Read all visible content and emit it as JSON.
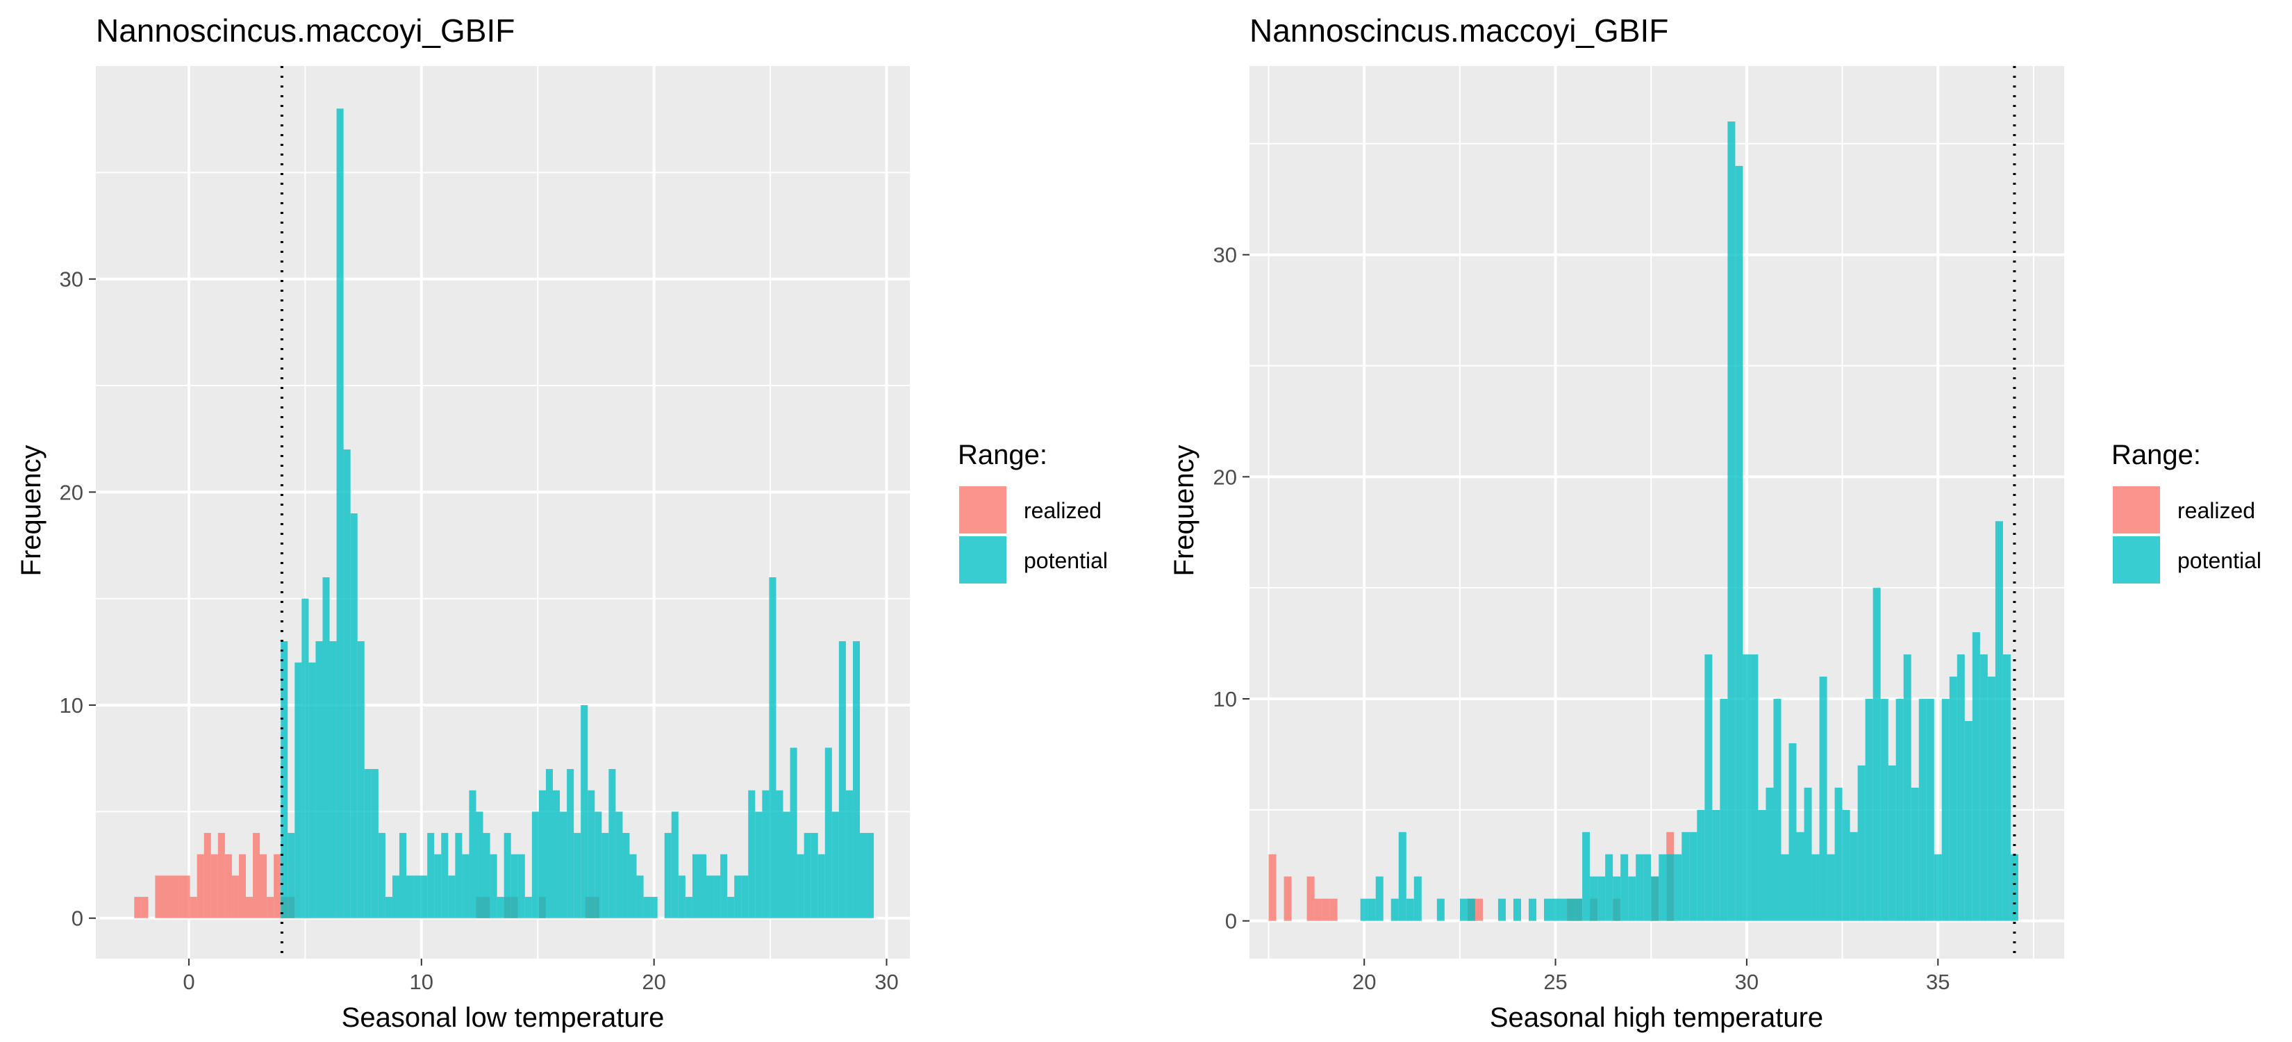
{
  "chart_data": [
    {
      "type": "bar",
      "subtype": "histogram",
      "title": "Nannoscincus.maccoyi_GBIF",
      "xlabel": "Seasonal low temperature",
      "ylabel": "Frequency",
      "xlim": [
        -4,
        31
      ],
      "ylim": [
        -1.9,
        40
      ],
      "xticks": [
        0,
        10,
        20,
        30
      ],
      "yticks": [
        0,
        10,
        20,
        30
      ],
      "binwidth": 0.3,
      "grid": true,
      "reference_line": {
        "x": 4,
        "style": "dotted"
      },
      "legend": {
        "title": "Range:",
        "position": "right",
        "entries": [
          "realized",
          "potential"
        ]
      },
      "colors": {
        "realized": "#F8766D",
        "potential": "#00BFC4"
      },
      "series": [
        {
          "name": "realized",
          "x": [
            -2.2,
            -1.9,
            -1.3,
            -1.0,
            -0.7,
            -0.4,
            -0.1,
            0.2,
            0.5,
            0.8,
            1.1,
            1.4,
            1.7,
            2.0,
            2.3,
            2.6,
            2.9,
            3.2,
            3.5,
            3.8,
            4.1,
            4.4,
            12.5,
            12.8,
            13.7,
            14.0,
            15.2,
            17.2,
            17.5
          ],
          "y": [
            1,
            1,
            2,
            2,
            2,
            2,
            2,
            1,
            3,
            4,
            3,
            4,
            3,
            2,
            3,
            1,
            4,
            3,
            1,
            3,
            1,
            1,
            1,
            1,
            1,
            1,
            1,
            1,
            1
          ]
        },
        {
          "name": "potential",
          "x": [
            4.1,
            4.4,
            4.7,
            5.0,
            5.3,
            5.6,
            5.9,
            6.2,
            6.5,
            6.8,
            7.1,
            7.4,
            7.7,
            8.0,
            8.3,
            8.6,
            8.9,
            9.2,
            9.5,
            9.8,
            10.1,
            10.4,
            10.7,
            11.0,
            11.3,
            11.6,
            11.9,
            12.2,
            12.5,
            12.8,
            13.1,
            13.4,
            13.7,
            14.0,
            14.3,
            14.6,
            14.9,
            15.2,
            15.5,
            15.8,
            16.1,
            16.4,
            16.7,
            17.0,
            17.3,
            17.6,
            17.9,
            18.2,
            18.5,
            18.8,
            19.1,
            19.4,
            19.7,
            20.0,
            20.6,
            20.9,
            21.2,
            21.5,
            21.8,
            22.1,
            22.4,
            22.7,
            23.0,
            23.3,
            23.6,
            23.9,
            24.2,
            24.5,
            24.8,
            25.1,
            25.4,
            25.7,
            26.0,
            26.3,
            26.6,
            26.9,
            27.2,
            27.5,
            27.8,
            28.1,
            28.4,
            28.7,
            29.0,
            29.3
          ],
          "y": [
            13,
            4,
            12,
            15,
            12,
            13,
            16,
            13,
            38,
            22,
            19,
            13,
            7,
            7,
            4,
            1,
            2,
            4,
            2,
            2,
            2,
            4,
            3,
            4,
            2,
            4,
            3,
            6,
            5,
            4,
            3,
            1,
            4,
            3,
            3,
            1,
            5,
            6,
            7,
            6,
            5,
            7,
            4,
            10,
            6,
            5,
            4,
            7,
            5,
            4,
            3,
            2,
            1,
            1,
            4,
            5,
            2,
            1,
            3,
            3,
            2,
            2,
            3,
            1,
            2,
            2,
            6,
            5,
            6,
            16,
            6,
            5,
            8,
            3,
            4,
            4,
            3,
            8,
            5,
            13,
            6,
            13,
            4,
            4
          ]
        }
      ]
    },
    {
      "type": "bar",
      "subtype": "histogram",
      "title": "Nannoscincus.maccoyi_GBIF",
      "xlabel": "Seasonal high temperature",
      "ylabel": "Frequency",
      "xlim": [
        17.0,
        38.3
      ],
      "ylim": [
        -1.7,
        38.5
      ],
      "xticks": [
        20,
        25,
        30,
        35
      ],
      "yticks": [
        0,
        10,
        20,
        30
      ],
      "binwidth": 0.2,
      "grid": true,
      "reference_line": {
        "x": 37,
        "style": "dotted"
      },
      "legend": {
        "title": "Range:",
        "position": "right",
        "entries": [
          "realized",
          "potential"
        ]
      },
      "colors": {
        "realized": "#F8766D",
        "potential": "#00BFC4"
      },
      "series": [
        {
          "name": "realized",
          "x": [
            17.6,
            18.0,
            18.6,
            18.8,
            19.0,
            19.2,
            22.8,
            23.0,
            25.4,
            25.6,
            26.0,
            26.6,
            27.6,
            28.0
          ],
          "y": [
            3,
            2,
            2,
            1,
            1,
            1,
            1,
            1,
            1,
            1,
            1,
            1,
            2,
            4
          ]
        },
        {
          "name": "potential",
          "x": [
            20.0,
            20.2,
            20.4,
            20.8,
            21.0,
            21.2,
            21.4,
            22.0,
            22.6,
            22.8,
            23.6,
            24.0,
            24.4,
            24.8,
            25.0,
            25.2,
            25.4,
            25.6,
            25.8,
            26.0,
            26.2,
            26.4,
            26.6,
            26.8,
            27.0,
            27.2,
            27.4,
            27.6,
            27.8,
            28.0,
            28.2,
            28.4,
            28.6,
            28.8,
            29.0,
            29.2,
            29.4,
            29.6,
            29.8,
            30.0,
            30.2,
            30.4,
            30.6,
            30.8,
            31.0,
            31.2,
            31.4,
            31.6,
            31.8,
            32.0,
            32.2,
            32.4,
            32.6,
            32.8,
            33.0,
            33.2,
            33.4,
            33.6,
            33.8,
            34.0,
            34.2,
            34.4,
            34.6,
            34.8,
            35.0,
            35.2,
            35.4,
            35.6,
            35.8,
            36.0,
            36.2,
            36.4,
            36.6,
            36.8,
            37.0
          ],
          "y": [
            1,
            1,
            2,
            1,
            4,
            1,
            2,
            1,
            1,
            1,
            1,
            1,
            1,
            1,
            1,
            1,
            1,
            1,
            4,
            2,
            2,
            3,
            2,
            3,
            2,
            3,
            3,
            2,
            3,
            3,
            3,
            4,
            4,
            5,
            12,
            5,
            10,
            36,
            34,
            12,
            12,
            5,
            6,
            10,
            3,
            8,
            4,
            6,
            3,
            11,
            3,
            6,
            5,
            4,
            7,
            10,
            15,
            10,
            7,
            10,
            12,
            6,
            10,
            10,
            3,
            10,
            11,
            12,
            9,
            13,
            12,
            11,
            18,
            12,
            3
          ]
        }
      ]
    }
  ]
}
